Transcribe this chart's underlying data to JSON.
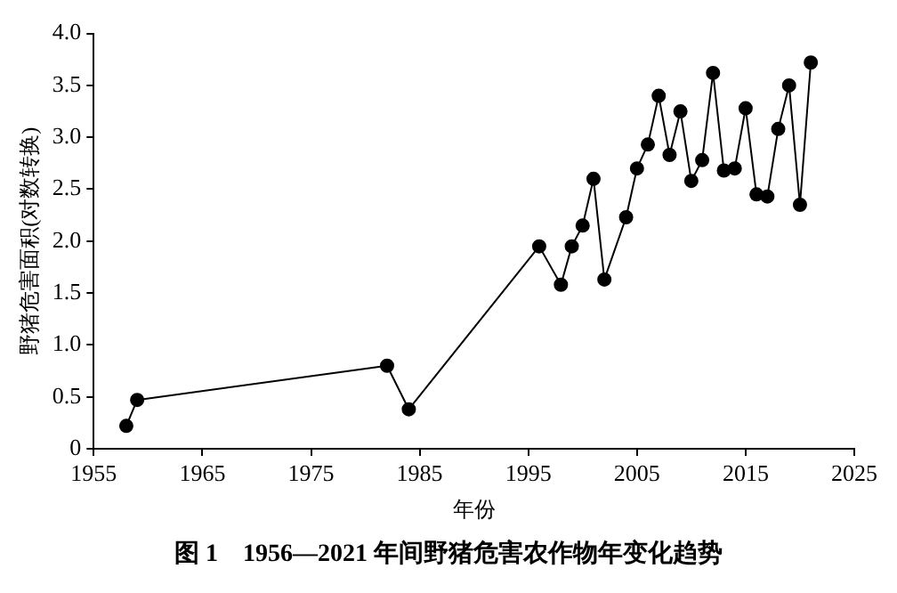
{
  "chart_data": {
    "type": "line",
    "title": "图 1　1956—2021 年间野猪危害农作物年变化趋势",
    "xlabel": "年份",
    "ylabel": "野猪危害面积(对数转换)",
    "x": [
      1958,
      1959,
      1982,
      1984,
      1996,
      1998,
      1999,
      2000,
      2001,
      2002,
      2004,
      2005,
      2006,
      2007,
      2008,
      2009,
      2010,
      2011,
      2012,
      2013,
      2014,
      2015,
      2016,
      2017,
      2018,
      2019,
      2020,
      2021
    ],
    "series": [
      {
        "color": "#000000",
        "values": [
          0.22,
          0.47,
          0.8,
          0.38,
          1.95,
          1.58,
          1.95,
          2.15,
          2.6,
          1.63,
          2.23,
          2.7,
          2.93,
          3.4,
          2.83,
          3.25,
          2.58,
          2.78,
          3.62,
          2.68,
          2.7,
          3.28,
          2.45,
          2.43,
          3.08,
          3.5,
          2.35,
          3.72
        ]
      }
    ],
    "xlim": [
      1955,
      2025
    ],
    "xticks": [
      1955,
      1965,
      1975,
      1985,
      1995,
      2005,
      2015,
      2025
    ],
    "ylim": [
      0,
      4
    ],
    "yticks": [
      0,
      {
        "value": 0.5,
        "label": "0.5"
      },
      {
        "value": 1,
        "label": "1.0"
      },
      {
        "value": 1.5,
        "label": "1.5"
      },
      {
        "value": 2,
        "label": "2.0"
      },
      {
        "value": 2.5,
        "label": "2.5"
      },
      {
        "value": 3,
        "label": "3.0"
      },
      {
        "value": 3.5,
        "label": "3.5"
      },
      {
        "value": 4,
        "label": "4.0"
      }
    ],
    "grid": false,
    "legend": false,
    "marker": "circle",
    "line_style": "solid"
  }
}
